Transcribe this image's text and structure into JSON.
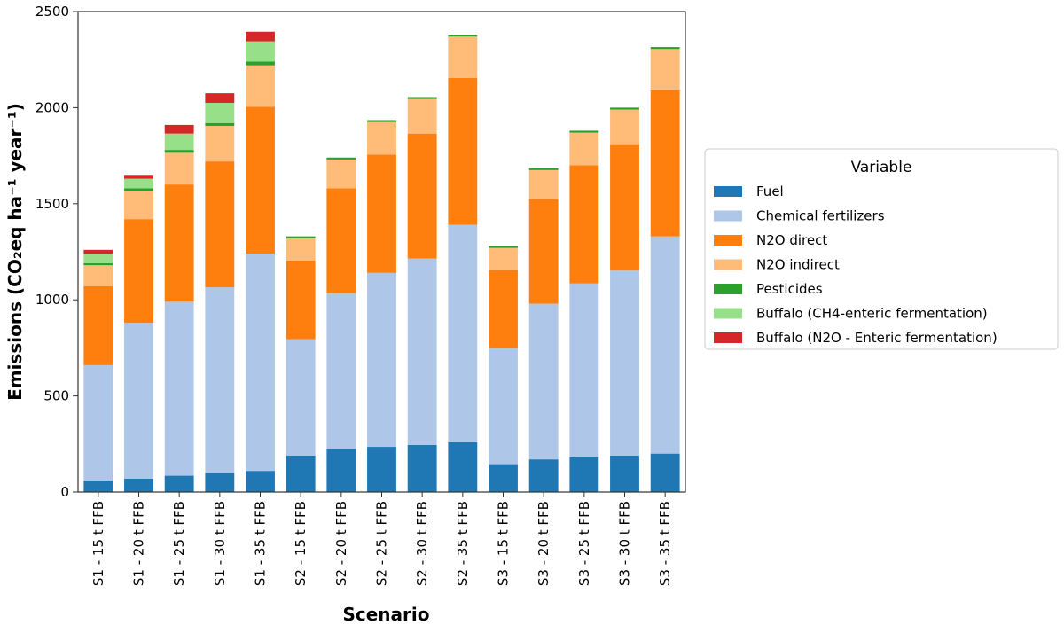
{
  "chart_data": {
    "type": "bar",
    "stacked": true,
    "xlabel": "Scenario",
    "ylabel": "Emissions (CO₂eq ha⁻¹ year⁻¹)",
    "ylim": [
      0,
      2500
    ],
    "yticks": [
      0,
      500,
      1000,
      1500,
      2000,
      2500
    ],
    "grid": false,
    "legend": {
      "title": "Variable",
      "placement": "right"
    },
    "categories": [
      "S1 - 15 t FFB",
      "S1 - 20 t FFB",
      "S1 - 25 t FFB",
      "S1 - 30 t FFB",
      "S1 - 35 t FFB",
      "S2 - 15 t FFB",
      "S2 - 20 t FFB",
      "S2 - 25 t FFB",
      "S2 - 30 t FFB",
      "S2 - 35 t FFB",
      "S3 - 15 t FFB",
      "S3 - 20 t FFB",
      "S3 - 25 t FFB",
      "S3 - 30 t FFB",
      "S3 - 35 t FFB"
    ],
    "series": [
      {
        "name": "Fuel",
        "color": "#1f77b4",
        "values": [
          60,
          70,
          85,
          100,
          110,
          190,
          225,
          235,
          245,
          260,
          145,
          170,
          180,
          190,
          200
        ]
      },
      {
        "name": "Chemical fertilizers",
        "color": "#aec7e8",
        "values": [
          600,
          810,
          905,
          965,
          1130,
          605,
          810,
          905,
          970,
          1130,
          605,
          810,
          905,
          965,
          1130
        ]
      },
      {
        "name": "N2O direct",
        "color": "#ff7f0e",
        "values": [
          410,
          540,
          610,
          655,
          765,
          410,
          545,
          615,
          650,
          765,
          405,
          545,
          615,
          655,
          760
        ]
      },
      {
        "name": "N2O indirect",
        "color": "#ffbb78",
        "values": [
          110,
          145,
          165,
          185,
          215,
          115,
          150,
          170,
          180,
          215,
          115,
          150,
          170,
          180,
          215
        ]
      },
      {
        "name": "Pesticides",
        "color": "#2ca02c",
        "values": [
          10,
          15,
          15,
          15,
          20,
          10,
          10,
          10,
          10,
          10,
          10,
          10,
          10,
          10,
          10
        ]
      },
      {
        "name": "Buffalo (CH4-enteric fermentation)",
        "color": "#98df8a",
        "values": [
          50,
          50,
          85,
          105,
          105,
          0,
          0,
          0,
          0,
          0,
          0,
          0,
          0,
          0,
          0
        ]
      },
      {
        "name": "Buffalo (N2O - Enteric fermentation)",
        "color": "#d62728",
        "values": [
          20,
          20,
          45,
          50,
          50,
          0,
          0,
          0,
          0,
          0,
          0,
          0,
          0,
          0,
          0
        ]
      }
    ]
  }
}
